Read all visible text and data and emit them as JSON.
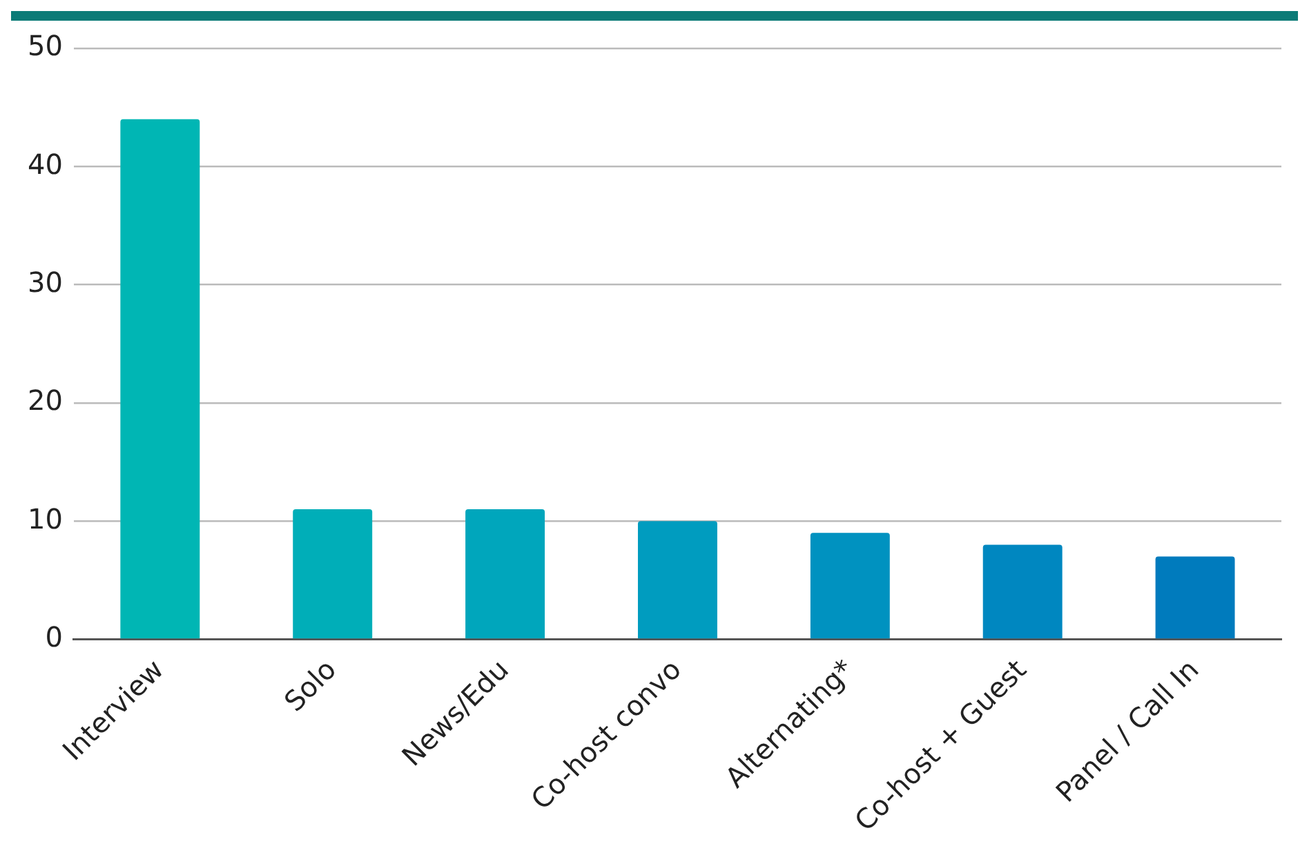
{
  "chart_data": {
    "type": "bar",
    "categories": [
      "Interview",
      "Solo",
      "News/Edu",
      "Co-host convo",
      "Alternating*",
      "Co-host + Guest",
      "Panel / Call In"
    ],
    "values": [
      44,
      11,
      11,
      10,
      9,
      8,
      7
    ],
    "colors": [
      "#00b6b4",
      "#00aeb8",
      "#00a6bc",
      "#009cbf",
      "#0092c0",
      "#0087c0",
      "#007bbd"
    ],
    "ylim": [
      0,
      50
    ],
    "yticks": [
      0,
      10,
      20,
      30,
      40,
      50
    ],
    "grid": "y"
  }
}
